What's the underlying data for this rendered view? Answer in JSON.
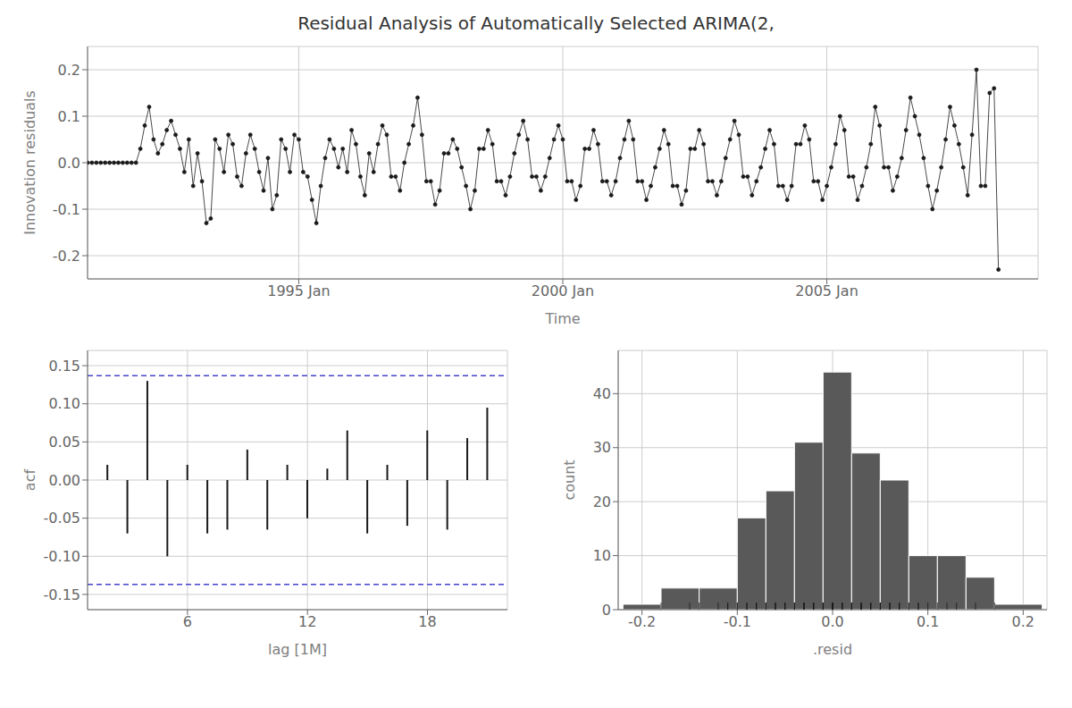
{
  "chart_data": [
    {
      "type": "line",
      "title": "Residual Analysis of Automatically Selected ARIMA(2,",
      "xlabel": "Time",
      "ylabel": "Innovation residuals",
      "color": "#1a1a1a",
      "marker": "circle",
      "grid": true,
      "xlim": [
        1991.0,
        2009.0
      ],
      "xticks": [
        {
          "value": 1995.0,
          "label": "1995 Jan"
        },
        {
          "value": 2000.0,
          "label": "2000 Jan"
        },
        {
          "value": 2005.0,
          "label": "2005 Jan"
        }
      ],
      "ylim": [
        -0.25,
        0.25
      ],
      "yticks": [
        -0.2,
        -0.1,
        {
          "value": 0.0,
          "label": "0.0"
        },
        0.1,
        0.2
      ],
      "x": [
        1991.0,
        1991.083,
        1991.167,
        1991.25,
        1991.333,
        1991.417,
        1991.5,
        1991.583,
        1991.667,
        1991.75,
        1991.833,
        1991.917,
        1992.0,
        1992.083,
        1992.167,
        1992.25,
        1992.333,
        1992.417,
        1992.5,
        1992.583,
        1992.667,
        1992.75,
        1992.833,
        1992.917,
        1993.0,
        1993.083,
        1993.167,
        1993.25,
        1993.333,
        1993.417,
        1993.5,
        1993.583,
        1993.667,
        1993.75,
        1993.833,
        1993.917,
        1994.0,
        1994.083,
        1994.167,
        1994.25,
        1994.333,
        1994.417,
        1994.5,
        1994.583,
        1994.667,
        1994.75,
        1994.833,
        1994.917,
        1995.0,
        1995.083,
        1995.167,
        1995.25,
        1995.333,
        1995.417,
        1995.5,
        1995.583,
        1995.667,
        1995.75,
        1995.833,
        1995.917,
        1996.0,
        1996.083,
        1996.167,
        1996.25,
        1996.333,
        1996.417,
        1996.5,
        1996.583,
        1996.667,
        1996.75,
        1996.833,
        1996.917,
        1997.0,
        1997.083,
        1997.167,
        1997.25,
        1997.333,
        1997.417,
        1997.5,
        1997.583,
        1997.667,
        1997.75,
        1997.833,
        1997.917,
        1998.0,
        1998.083,
        1998.167,
        1998.25,
        1998.333,
        1998.417,
        1998.5,
        1998.583,
        1998.667,
        1998.75,
        1998.833,
        1998.917,
        1999.0,
        1999.083,
        1999.167,
        1999.25,
        1999.333,
        1999.417,
        1999.5,
        1999.583,
        1999.667,
        1999.75,
        1999.833,
        1999.917,
        2000.0,
        2000.083,
        2000.167,
        2000.25,
        2000.333,
        2000.417,
        2000.5,
        2000.583,
        2000.667,
        2000.75,
        2000.833,
        2000.917,
        2001.0,
        2001.083,
        2001.167,
        2001.25,
        2001.333,
        2001.417,
        2001.5,
        2001.583,
        2001.667,
        2001.75,
        2001.833,
        2001.917,
        2002.0,
        2002.083,
        2002.167,
        2002.25,
        2002.333,
        2002.417,
        2002.5,
        2002.583,
        2002.667,
        2002.75,
        2002.833,
        2002.917,
        2003.0,
        2003.083,
        2003.167,
        2003.25,
        2003.333,
        2003.417,
        2003.5,
        2003.583,
        2003.667,
        2003.75,
        2003.833,
        2003.917,
        2004.0,
        2004.083,
        2004.167,
        2004.25,
        2004.333,
        2004.417,
        2004.5,
        2004.583,
        2004.667,
        2004.75,
        2004.833,
        2004.917,
        2005.0,
        2005.083,
        2005.167,
        2005.25,
        2005.333,
        2005.417,
        2005.5,
        2005.583,
        2005.667,
        2005.75,
        2005.833,
        2005.917,
        2006.0,
        2006.083,
        2006.167,
        2006.25,
        2006.333,
        2006.417,
        2006.5,
        2006.583,
        2006.667,
        2006.75,
        2006.833,
        2006.917,
        2007.0,
        2007.083,
        2007.167,
        2007.25,
        2007.333,
        2007.417,
        2007.5,
        2007.583,
        2007.667,
        2007.75,
        2007.833,
        2007.917,
        2008.0,
        2008.083,
        2008.167,
        2008.25
      ],
      "values": [
        0.0,
        0.0,
        0.0,
        0.0,
        0.0,
        0.0,
        0.0,
        0.0,
        0.0,
        0.0,
        0.0,
        0.0,
        0.03,
        0.08,
        0.12,
        0.05,
        0.02,
        0.04,
        0.07,
        0.09,
        0.06,
        0.03,
        -0.02,
        0.05,
        -0.05,
        0.02,
        -0.04,
        -0.13,
        -0.12,
        0.05,
        0.03,
        -0.02,
        0.06,
        0.04,
        -0.03,
        -0.05,
        0.02,
        0.06,
        0.03,
        -0.02,
        -0.06,
        0.01,
        -0.1,
        -0.07,
        0.05,
        0.03,
        -0.02,
        0.06,
        0.05,
        -0.02,
        -0.03,
        -0.08,
        -0.13,
        -0.05,
        0.01,
        0.05,
        0.03,
        -0.01,
        0.03,
        -0.02,
        0.07,
        0.04,
        -0.03,
        -0.07,
        0.02,
        -0.02,
        0.04,
        0.08,
        0.06,
        -0.03,
        -0.03,
        -0.06,
        0.0,
        0.04,
        0.08,
        0.14,
        0.06,
        -0.04,
        -0.04,
        -0.09,
        -0.06,
        0.02,
        0.02,
        0.05,
        0.03,
        -0.01,
        -0.05,
        -0.1,
        -0.06,
        0.03,
        0.03,
        0.07,
        0.04,
        -0.04,
        -0.04,
        -0.07,
        -0.03,
        0.02,
        0.06,
        0.09,
        0.05,
        -0.03,
        -0.03,
        -0.06,
        -0.03,
        0.01,
        0.05,
        0.08,
        0.05,
        -0.04,
        -0.04,
        -0.08,
        -0.05,
        0.03,
        0.03,
        0.07,
        0.04,
        -0.04,
        -0.04,
        -0.07,
        -0.04,
        0.01,
        0.05,
        0.09,
        0.05,
        -0.04,
        -0.04,
        -0.08,
        -0.05,
        -0.01,
        0.03,
        0.07,
        0.04,
        -0.05,
        -0.05,
        -0.09,
        -0.06,
        0.03,
        0.03,
        0.07,
        0.04,
        -0.04,
        -0.04,
        -0.07,
        -0.04,
        0.01,
        0.05,
        0.09,
        0.06,
        -0.03,
        -0.03,
        -0.07,
        -0.04,
        -0.01,
        0.03,
        0.07,
        0.04,
        -0.05,
        -0.05,
        -0.08,
        -0.05,
        0.04,
        0.04,
        0.08,
        0.05,
        -0.04,
        -0.04,
        -0.08,
        -0.05,
        -0.01,
        0.04,
        0.1,
        0.07,
        -0.03,
        -0.03,
        -0.08,
        -0.05,
        -0.01,
        0.04,
        0.12,
        0.08,
        -0.01,
        -0.01,
        -0.06,
        -0.03,
        0.01,
        0.07,
        0.14,
        0.1,
        0.06,
        0.01,
        -0.05,
        -0.1,
        -0.06,
        -0.01,
        0.05,
        0.12,
        0.08,
        0.04,
        -0.01,
        -0.07,
        0.06,
        0.2,
        -0.05,
        -0.05,
        0.15,
        0.16,
        -0.23
      ]
    },
    {
      "type": "bar",
      "xlabel": "lag [1M]",
      "ylabel": "acf",
      "color": "#1a1a1a",
      "grid": true,
      "xlim": [
        1,
        22
      ],
      "xticks": [
        6,
        12,
        18
      ],
      "ylim": [
        -0.17,
        0.17
      ],
      "yticks": [
        -0.15,
        {
          "value": -0.1,
          "label": "-0.10"
        },
        -0.05,
        {
          "value": 0.0,
          "label": "0.00"
        },
        0.05,
        {
          "value": 0.1,
          "label": "0.10"
        },
        0.15
      ],
      "x": [
        2,
        3,
        4,
        5,
        6,
        7,
        8,
        9,
        10,
        11,
        12,
        13,
        14,
        15,
        16,
        17,
        18,
        19,
        20,
        21
      ],
      "values": [
        0.02,
        -0.07,
        0.13,
        -0.1,
        0.02,
        -0.07,
        -0.065,
        0.04,
        -0.065,
        0.02,
        -0.05,
        0.015,
        0.065,
        -0.07,
        0.02,
        -0.06,
        0.065,
        -0.065,
        0.055,
        0.095
      ],
      "ci": {
        "values": [
          0.137,
          -0.137
        ],
        "color": "#4444CC",
        "line_style": "dashed"
      }
    },
    {
      "type": "histogram",
      "xlabel": ".resid",
      "ylabel": "count",
      "color": "#595959",
      "grid": true,
      "xlim": [
        -0.225,
        0.225
      ],
      "xticks": [
        -0.2,
        -0.1,
        {
          "value": 0.0,
          "label": "0.0"
        },
        0.1,
        0.2
      ],
      "ylim": [
        0,
        48
      ],
      "yticks": [
        0,
        10,
        20,
        30,
        40
      ],
      "bins": [
        -0.22,
        -0.18,
        -0.14,
        -0.1,
        -0.07,
        -0.04,
        -0.01,
        0.02,
        0.05,
        0.08,
        0.11,
        0.14,
        0.17,
        0.22
      ],
      "values": [
        1,
        4,
        4,
        17,
        22,
        31,
        44,
        29,
        24,
        10,
        10,
        6,
        1
      ],
      "rug": {
        "color": "#1a1a1a",
        "values": [
          -0.18,
          -0.15,
          -0.14,
          -0.12,
          -0.11,
          -0.11,
          -0.1,
          -0.1,
          -0.09,
          -0.09,
          -0.08,
          -0.08,
          -0.08,
          -0.07,
          -0.07,
          -0.07,
          -0.06,
          -0.06,
          -0.06,
          -0.05,
          -0.05,
          -0.05,
          -0.05,
          -0.04,
          -0.04,
          -0.04,
          -0.04,
          -0.03,
          -0.03,
          -0.03,
          -0.03,
          -0.02,
          -0.02,
          -0.02,
          -0.02,
          -0.02,
          -0.01,
          -0.01,
          -0.01,
          -0.01,
          -0.01,
          0.0,
          0.0,
          0.0,
          0.0,
          0.0,
          0.0,
          0.0,
          0.0,
          0.0,
          0.0,
          0.01,
          0.01,
          0.01,
          0.01,
          0.01,
          0.01,
          0.02,
          0.02,
          0.02,
          0.02,
          0.02,
          0.03,
          0.03,
          0.03,
          0.03,
          0.04,
          0.04,
          0.04,
          0.04,
          0.05,
          0.05,
          0.05,
          0.05,
          0.06,
          0.06,
          0.06,
          0.07,
          0.07,
          0.07,
          0.08,
          0.08,
          0.09,
          0.09,
          0.1,
          0.11,
          0.12,
          0.13,
          0.15,
          0.17
        ]
      }
    }
  ]
}
